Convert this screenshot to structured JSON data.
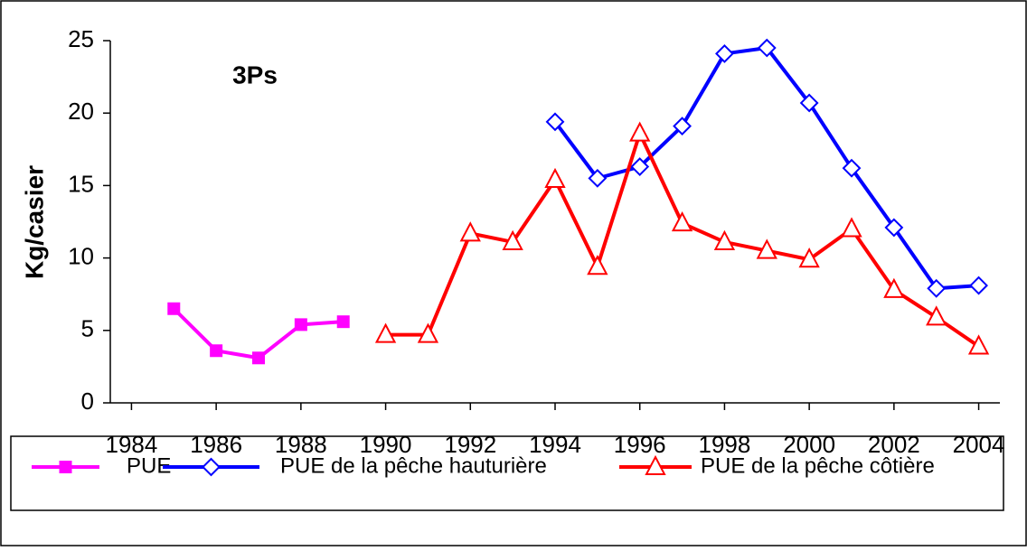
{
  "chart_data": {
    "type": "line",
    "annotation": "3Ps",
    "y_label": "Kg/casier",
    "xlim": [
      1983.5,
      2004.5
    ],
    "xticks": [
      1984,
      1986,
      1988,
      1990,
      1992,
      1994,
      1996,
      1998,
      2000,
      2002,
      2004
    ],
    "ylim": [
      0,
      25
    ],
    "yticks": [
      0,
      5,
      10,
      15,
      20,
      25
    ],
    "legend": "bottom",
    "series": [
      {
        "name": "PUE",
        "color": "#ff00ff",
        "marker": "square",
        "x": [
          1985,
          1986,
          1987,
          1988,
          1989
        ],
        "values": [
          6.5,
          3.6,
          3.1,
          5.4,
          5.6
        ]
      },
      {
        "name": "PUE de la pêche hauturière",
        "color": "#0000ff",
        "marker": "diamond",
        "x": [
          1994,
          1995,
          1996,
          1997,
          1998,
          1999,
          2000,
          2001,
          2002,
          2003,
          2004
        ],
        "values": [
          19.4,
          15.5,
          16.3,
          19.1,
          24.1,
          24.5,
          20.7,
          16.2,
          12.1,
          7.9,
          8.1
        ]
      },
      {
        "name": "PUE de la pêche côtière",
        "color": "#ff0000",
        "marker": "triangle",
        "x": [
          1990,
          1991,
          1992,
          1993,
          1994,
          1995,
          1996,
          1997,
          1998,
          1999,
          2000,
          2001,
          2002,
          2003,
          2004
        ],
        "values": [
          4.7,
          4.7,
          11.7,
          11.1,
          15.4,
          9.4,
          18.6,
          12.4,
          11.1,
          10.5,
          9.9,
          12.0,
          7.8,
          5.9,
          3.9
        ]
      }
    ]
  }
}
